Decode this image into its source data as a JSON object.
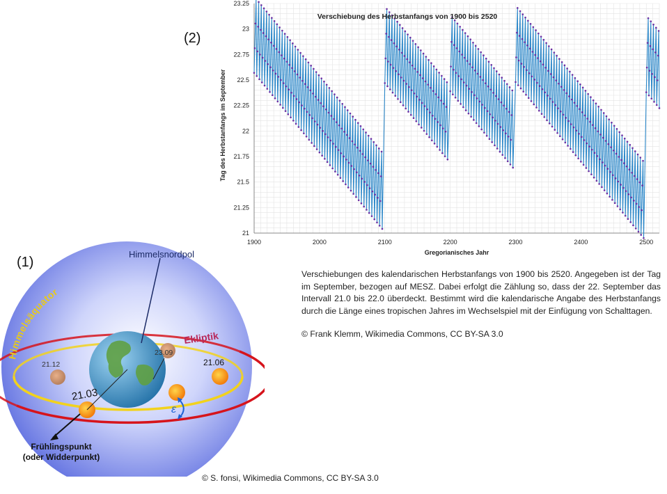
{
  "labels": {
    "chart_label": "(2)",
    "diagram_label": "(1)"
  },
  "chart_data": {
    "type": "line",
    "title": "Verschiebung  des Herbstanfangs  von 1900 bis 2520",
    "xlabel": "Gregorianisches Jahr",
    "ylabel": "Tag des Herbstanfangs im September",
    "xlim": [
      1900,
      2520
    ],
    "ylim": [
      21,
      23.25
    ],
    "x_ticks": [
      "1900",
      "2000",
      "2100",
      "2200",
      "2300",
      "2400",
      "2500"
    ],
    "y_ticks": [
      "21",
      "21.25",
      "21.5",
      "21.75",
      "22",
      "22.25",
      "22.5",
      "22.75",
      "23",
      "23.25"
    ],
    "grid": true,
    "series_color": "#2a86c8",
    "marker_color": "#6b2fa3",
    "segments": [
      {
        "start": 1900,
        "end": 2096,
        "base": 22.57,
        "slope": -0.0078
      },
      {
        "start": 2100,
        "end": 2196,
        "base": 22.47,
        "slope": -0.0078
      },
      {
        "start": 2200,
        "end": 2296,
        "base": 22.39,
        "slope": -0.0078
      },
      {
        "start": 2300,
        "end": 2496,
        "base": 22.48,
        "slope": -0.0078
      },
      {
        "start": 2500,
        "end": 2520,
        "base": 22.38,
        "slope": -0.0078
      }
    ],
    "leap_cycle_step": 0.242
  },
  "caption": {
    "text": "Verschiebungen des kalendarischen Herbstanfangs von 1900 bis 2520. Angegeben ist der Tag im September, bezogen auf MESZ. Dabei erfolgt die Zählung so, dass der 22. September das Intervall 21.0 bis 22.0 überdeckt. Bestimmt wird die kalendarische Angabe des Herbstanfangs durch die Länge eines tropischen Jahres im Wechselspiel mit der Einfügung von Schalttagen.",
    "copyright": "© Frank Klemm, Wikimedia Commons, CC BY-SA 3.0"
  },
  "diagram": {
    "north_pole": "Himmelsnordpol",
    "equator": "Himmelsäquator",
    "ecliptic": "Ekliptik",
    "date_sep": "23.09",
    "date_dec": "21.12",
    "date_jun": "21.06",
    "date_mar": "21.03",
    "epsilon": "ε",
    "vernal_point": "Frühlingspunkt",
    "vernal_point_alt": "(oder Widderpunkt)",
    "colors": {
      "equator": "#f2d21d",
      "ecliptic": "#d6141c",
      "sphere": "#5f6fe0"
    },
    "copyright": "© S. fonsi, Wikimedia Commons, CC BY-SA 3.0"
  }
}
